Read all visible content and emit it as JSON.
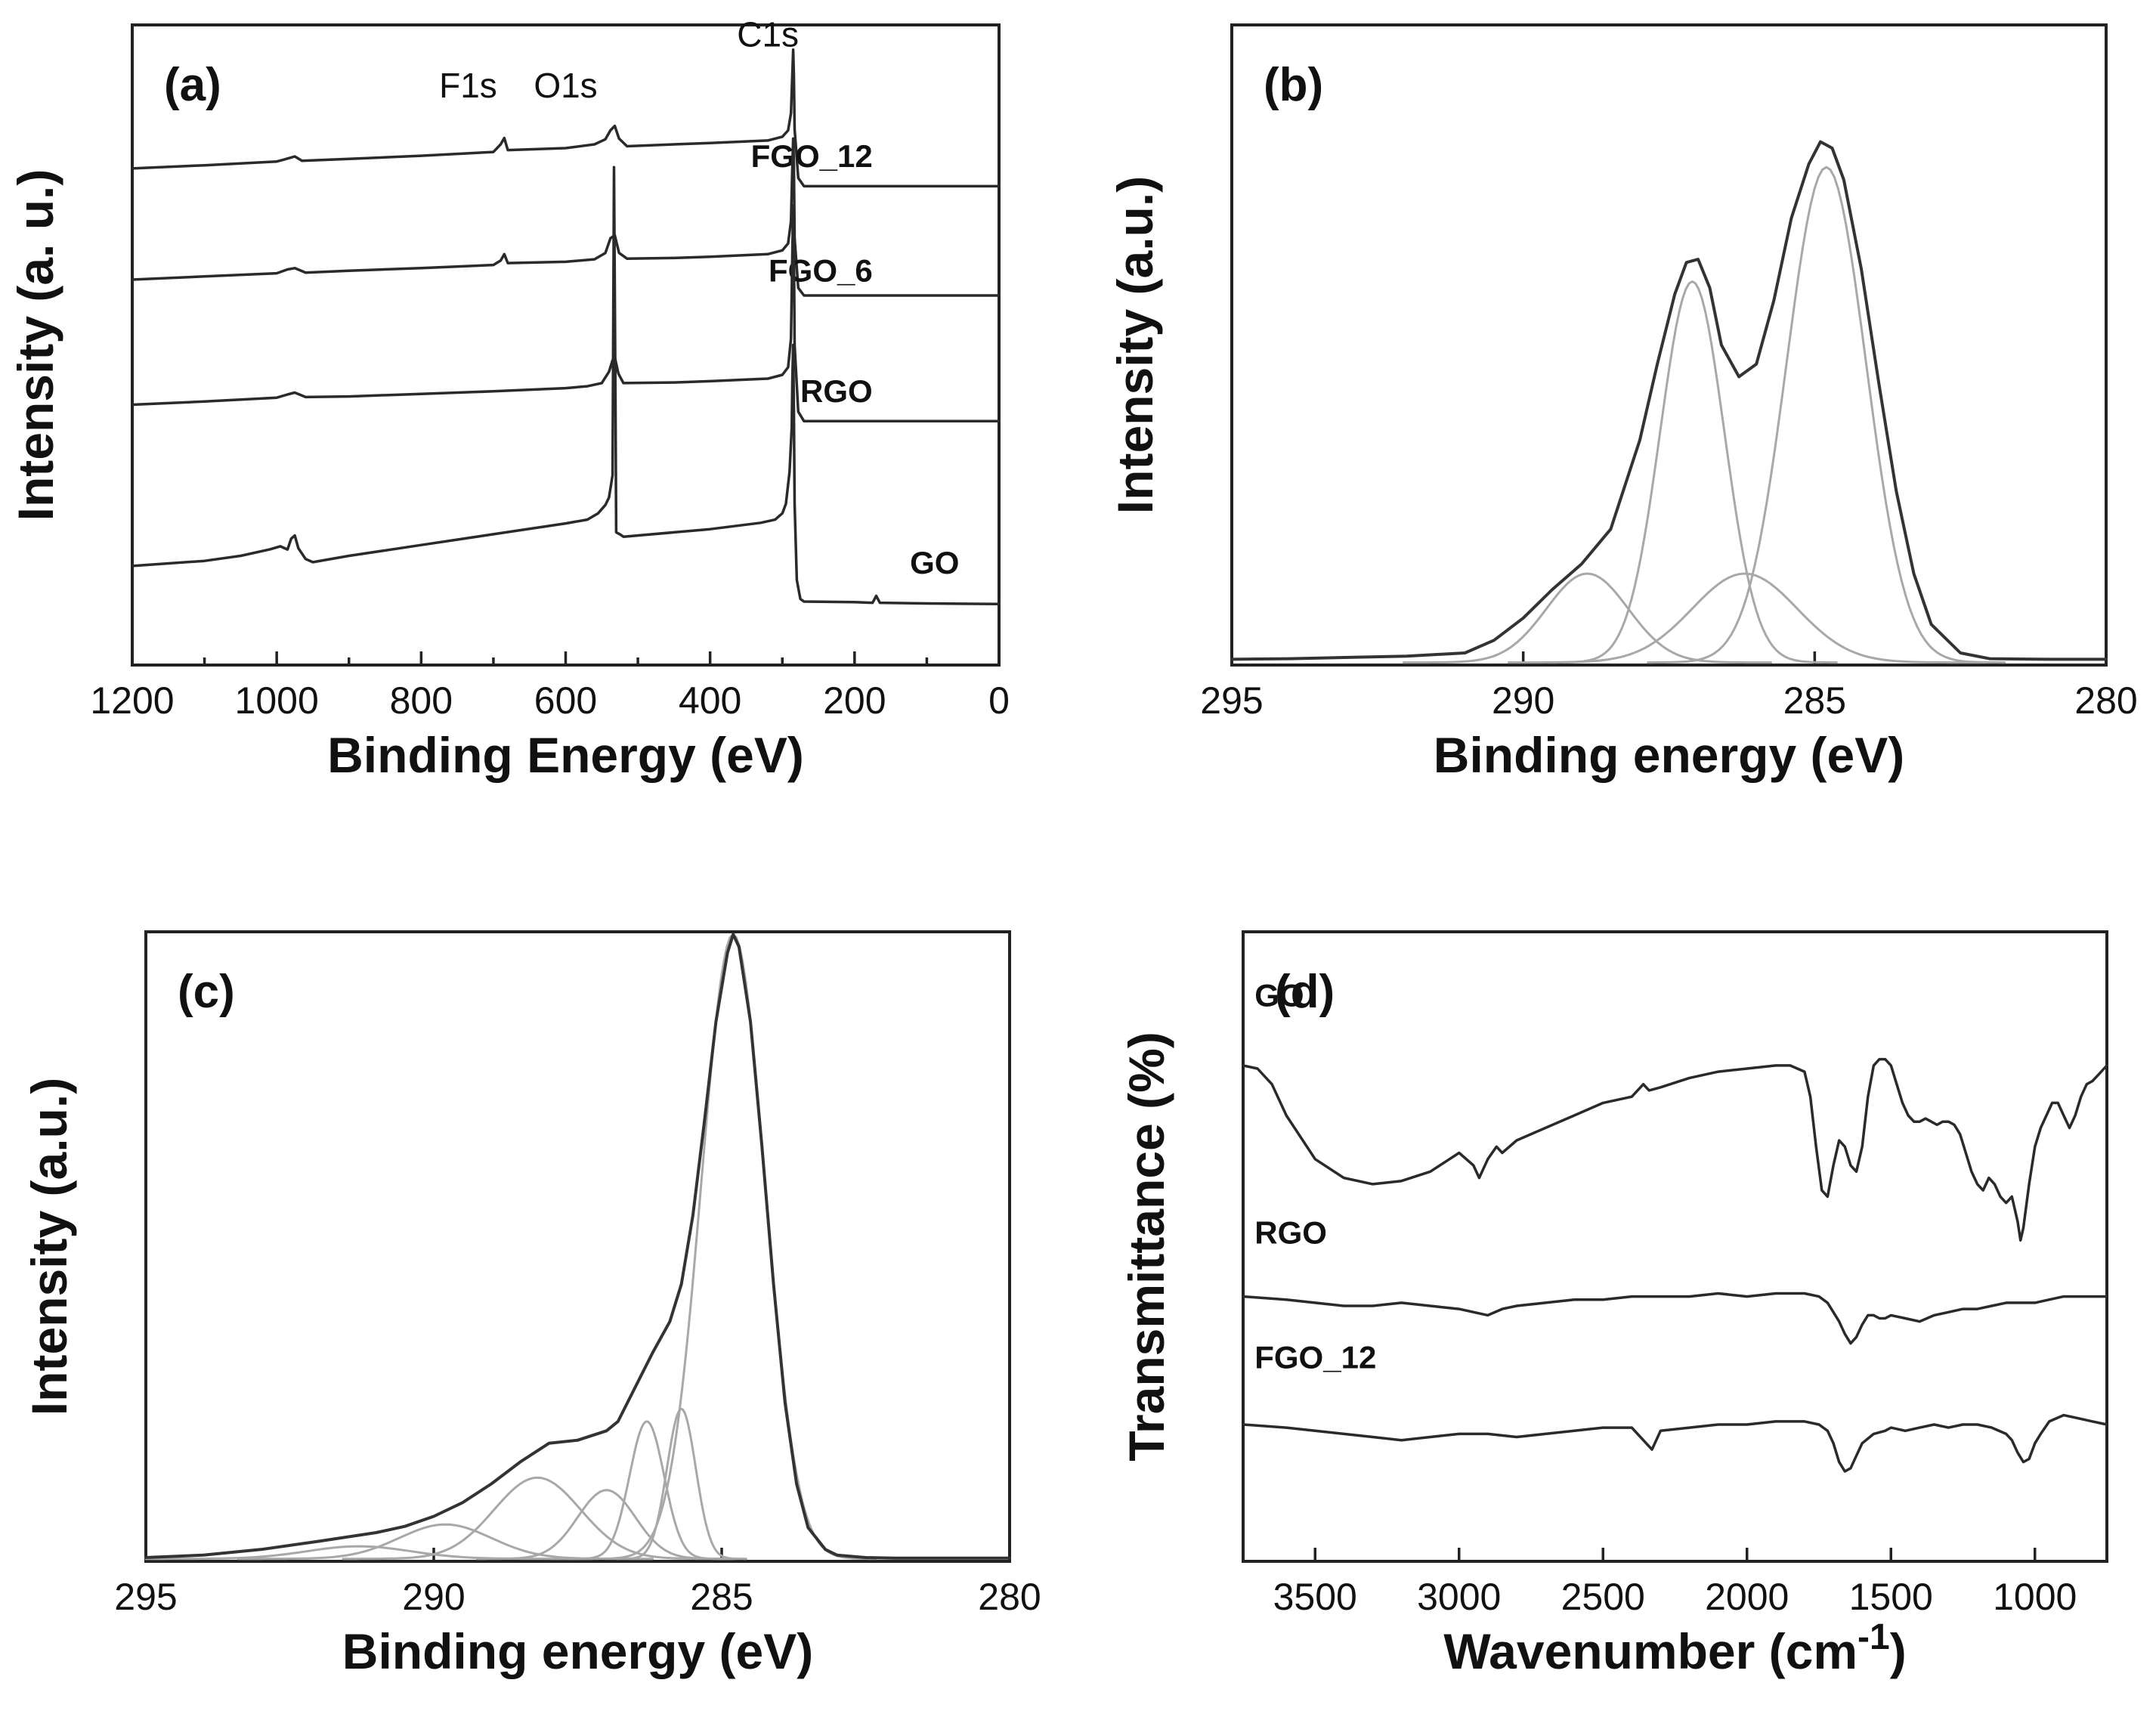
{
  "colors": {
    "frame": "#222222",
    "envelope": "#333333",
    "component": "#a8a8a8",
    "spectrum": "#2a2a2a"
  },
  "chart_data": [
    {
      "id": "a",
      "type": "line",
      "panel_label": "(a)",
      "xlabel": "Binding Energy (eV)",
      "ylabel": "Intensity (a. u.)",
      "xlim": [
        1200,
        0
      ],
      "ylim": [
        0,
        100
      ],
      "xticks": [
        1200,
        1000,
        800,
        600,
        400,
        200,
        0
      ],
      "annotations": [
        {
          "text": "F1s",
          "x": 735,
          "y": 89
        },
        {
          "text": "O1s",
          "x": 600,
          "y": 89
        },
        {
          "text": "C1s",
          "x": 320,
          "y": 97
        }
      ],
      "series": [
        {
          "name": "FGO_12",
          "label_xy": [
            175,
            78
          ],
          "x": [
            1200,
            1100,
            1000,
            990,
            975,
            965,
            900,
            800,
            700,
            690,
            685,
            680,
            600,
            560,
            545,
            538,
            532,
            526,
            515,
            450,
            400,
            320,
            300,
            292,
            288,
            286,
            285,
            284,
            283,
            278,
            270,
            200,
            100,
            0
          ],
          "y": [
            77.8,
            78.3,
            78.9,
            79.2,
            79.7,
            79.0,
            79.3,
            79.8,
            80.4,
            81.6,
            82.6,
            80.7,
            81.0,
            81.6,
            82.4,
            83.8,
            84.5,
            82.5,
            81.3,
            81.6,
            81.8,
            82.2,
            82.8,
            83.8,
            86.5,
            93.0,
            96.5,
            92.5,
            84.0,
            76.3,
            75.0,
            75.0,
            75.0,
            75.0
          ]
        },
        {
          "name": "FGO_6",
          "label_xy": [
            175,
            60
          ],
          "x": [
            1200,
            1100,
            1000,
            985,
            975,
            960,
            900,
            800,
            700,
            690,
            685,
            680,
            600,
            560,
            545,
            538,
            532,
            526,
            515,
            450,
            400,
            320,
            300,
            292,
            288,
            286,
            285,
            284,
            283,
            278,
            270,
            200,
            100,
            0
          ],
          "y": [
            60.3,
            60.8,
            61.3,
            61.9,
            62.1,
            61.4,
            61.7,
            62.1,
            62.6,
            63.3,
            64.3,
            62.9,
            63.1,
            63.5,
            64.5,
            66.8,
            67.3,
            64.5,
            63.6,
            63.7,
            63.9,
            64.3,
            64.9,
            66.0,
            69.5,
            78.5,
            82.5,
            78.5,
            66.8,
            59.0,
            57.8,
            57.8,
            57.8,
            57.8
          ]
        },
        {
          "name": "RGO",
          "label_xy": [
            175,
            41
          ],
          "x": [
            1200,
            1100,
            1000,
            985,
            975,
            960,
            900,
            800,
            700,
            600,
            570,
            550,
            540,
            535,
            532,
            527,
            520,
            450,
            400,
            320,
            300,
            292,
            288,
            286,
            285,
            284,
            283,
            278,
            270,
            200,
            100,
            0
          ],
          "y": [
            40.6,
            41.1,
            41.7,
            42.2,
            42.5,
            41.8,
            41.9,
            42.3,
            42.7,
            43.2,
            43.5,
            44.0,
            45.8,
            47.6,
            48.1,
            45.5,
            44.0,
            44.1,
            44.3,
            44.7,
            45.3,
            46.5,
            51.0,
            65.0,
            72.0,
            66.0,
            50.0,
            39.5,
            38.0,
            38.0,
            38.0,
            38.0
          ]
        },
        {
          "name": "GO",
          "label_xy": [
            55,
            14
          ],
          "x": [
            1200,
            1100,
            1050,
            1010,
            995,
            985,
            980,
            975,
            970,
            960,
            950,
            900,
            800,
            700,
            600,
            570,
            555,
            545,
            540,
            535,
            533,
            531,
            530,
            525,
            520,
            450,
            400,
            330,
            310,
            300,
            295,
            290,
            287,
            286,
            285,
            284,
            283,
            280,
            275,
            270,
            200,
            175,
            170,
            165,
            100,
            0
          ],
          "y": [
            15.2,
            16.0,
            16.8,
            17.8,
            18.3,
            17.8,
            19.5,
            20.0,
            18.0,
            16.3,
            15.8,
            16.8,
            18.5,
            20.2,
            21.9,
            22.5,
            23.5,
            24.8,
            26.0,
            29.5,
            78.0,
            40.0,
            20.5,
            20.2,
            19.8,
            20.5,
            21.0,
            22.0,
            22.5,
            23.5,
            25.0,
            30.0,
            37.0,
            45.0,
            50.0,
            40.0,
            25.0,
            13.0,
            10.0,
            9.6,
            9.5,
            9.4,
            10.5,
            9.4,
            9.3,
            9.2
          ]
        }
      ]
    },
    {
      "id": "b",
      "type": "line",
      "panel_label": "(b)",
      "xlabel": "Binding energy (eV)",
      "ylabel": "Intensity (a.u.)",
      "xlim": [
        295,
        280
      ],
      "ylim": [
        0,
        100
      ],
      "xticks": [
        295,
        290,
        285,
        280
      ],
      "fit_peaks": [
        {
          "center": 284.8,
          "height": 78.0,
          "sigma": 0.68
        },
        {
          "center": 287.1,
          "height": 60.0,
          "sigma": 0.55
        },
        {
          "center": 286.2,
          "height": 14.0,
          "sigma": 0.9
        },
        {
          "center": 288.9,
          "height": 14.0,
          "sigma": 0.7
        }
      ],
      "envelope": {
        "x": [
          295.0,
          294.0,
          293.0,
          292.0,
          291.0,
          290.5,
          290.0,
          289.5,
          289.0,
          288.5,
          288.0,
          287.7,
          287.4,
          287.2,
          287.0,
          286.8,
          286.6,
          286.3,
          286.0,
          285.7,
          285.4,
          285.1,
          284.9,
          284.7,
          284.5,
          284.2,
          283.9,
          283.6,
          283.3,
          283.0,
          282.5,
          282.0,
          281.0,
          280.0
        ],
        "y": [
          0.5,
          0.6,
          0.8,
          1.0,
          1.5,
          3.5,
          7.0,
          11.5,
          15.5,
          21.0,
          35.0,
          47.0,
          58.0,
          63.0,
          63.5,
          59.0,
          50.0,
          45.0,
          47.0,
          57.0,
          70.0,
          78.5,
          82.0,
          81.0,
          76.0,
          62.0,
          44.0,
          27.0,
          14.0,
          6.0,
          1.5,
          0.6,
          0.5,
          0.5
        ]
      }
    },
    {
      "id": "c",
      "type": "line",
      "panel_label": "(c)",
      "xlabel": "Binding energy (eV)",
      "ylabel": "Intensity (a.u.)",
      "xlim": [
        295,
        280
      ],
      "ylim": [
        0,
        100
      ],
      "xticks": [
        295,
        290,
        285,
        280
      ],
      "fit_peaks": [
        {
          "center": 284.8,
          "height": 100.0,
          "sigma": 0.55
        },
        {
          "center": 285.7,
          "height": 24.0,
          "sigma": 0.25
        },
        {
          "center": 286.3,
          "height": 22.0,
          "sigma": 0.3
        },
        {
          "center": 287.0,
          "height": 11.0,
          "sigma": 0.5
        },
        {
          "center": 288.2,
          "height": 13.0,
          "sigma": 0.75
        },
        {
          "center": 289.8,
          "height": 5.5,
          "sigma": 0.8
        },
        {
          "center": 291.3,
          "height": 2.0,
          "sigma": 0.9
        }
      ],
      "envelope": {
        "x": [
          295.0,
          294.0,
          293.0,
          292.0,
          291.0,
          290.5,
          290.0,
          289.5,
          289.0,
          288.5,
          288.0,
          287.5,
          287.0,
          286.8,
          286.5,
          286.2,
          285.9,
          285.7,
          285.5,
          285.3,
          285.1,
          284.9,
          284.8,
          284.7,
          284.5,
          284.3,
          284.1,
          283.9,
          283.7,
          283.5,
          283.2,
          283.0,
          282.5,
          282.0,
          281.0,
          280.0
        ],
        "y": [
          0.2,
          0.6,
          1.5,
          2.8,
          4.2,
          5.2,
          6.8,
          9.0,
          12.0,
          15.5,
          18.5,
          19.0,
          20.5,
          22.0,
          27.5,
          33.0,
          38.0,
          44.0,
          55.0,
          70.0,
          86.0,
          97.0,
          100.0,
          98.0,
          86.0,
          66.0,
          44.0,
          25.0,
          12.0,
          5.0,
          1.5,
          0.6,
          0.2,
          0.1,
          0.1,
          0.1
        ]
      }
    },
    {
      "id": "d",
      "type": "line",
      "panel_label": "(d)",
      "xlabel": "Wavenumber (cm",
      "xlabel_sup": "-1",
      "xlabel_end": ")",
      "ylabel": "Transmittance (%)",
      "xlim": [
        3750,
        750
      ],
      "ylim": [
        0,
        100
      ],
      "xticks": [
        3500,
        3000,
        2500,
        2000,
        1500,
        1000
      ],
      "series": [
        {
          "name": "GO",
          "label_xy": [
            3710,
            88.5
          ],
          "x": [
            3750,
            3700,
            3650,
            3600,
            3500,
            3400,
            3300,
            3200,
            3100,
            3000,
            2950,
            2930,
            2900,
            2870,
            2850,
            2800,
            2700,
            2600,
            2500,
            2400,
            2360,
            2340,
            2300,
            2200,
            2100,
            2000,
            1900,
            1850,
            1800,
            1780,
            1760,
            1740,
            1720,
            1700,
            1680,
            1660,
            1640,
            1620,
            1600,
            1580,
            1560,
            1540,
            1520,
            1500,
            1480,
            1460,
            1440,
            1420,
            1400,
            1380,
            1360,
            1340,
            1320,
            1300,
            1280,
            1260,
            1240,
            1220,
            1200,
            1180,
            1160,
            1140,
            1120,
            1100,
            1080,
            1060,
            1050,
            1040,
            1020,
            1000,
            980,
            960,
            940,
            920,
            900,
            880,
            860,
            840,
            820,
            800,
            780,
            760,
            750
          ],
          "y": [
            79,
            78.5,
            76,
            71,
            64,
            61,
            60,
            60.5,
            62,
            65,
            63,
            61,
            64,
            66,
            65,
            67,
            69,
            71,
            73,
            74,
            76,
            75,
            75.5,
            77,
            78,
            78.5,
            79,
            79,
            78,
            74,
            66,
            59,
            58,
            63,
            67,
            66,
            63,
            62,
            66,
            74,
            79,
            80,
            80,
            79,
            76,
            73,
            71,
            70,
            70,
            70.5,
            70,
            69.5,
            70,
            70,
            69.5,
            68,
            65,
            62,
            60,
            59,
            61,
            60,
            58,
            57,
            58,
            54,
            51,
            53,
            60,
            66,
            69,
            71,
            73,
            73,
            71,
            69,
            71,
            74,
            76,
            76.5,
            77.5,
            78.5,
            79
          ]
        },
        {
          "name": "RGO",
          "label_xy": [
            3710,
            50.5
          ],
          "x": [
            3750,
            3600,
            3500,
            3400,
            3300,
            3200,
            3100,
            3000,
            2900,
            2850,
            2800,
            2700,
            2600,
            2500,
            2400,
            2300,
            2200,
            2100,
            2000,
            1900,
            1800,
            1750,
            1720,
            1700,
            1680,
            1660,
            1640,
            1620,
            1600,
            1580,
            1560,
            1540,
            1520,
            1500,
            1450,
            1400,
            1350,
            1300,
            1250,
            1200,
            1150,
            1100,
            1050,
            1000,
            950,
            900,
            850,
            800,
            750
          ],
          "y": [
            42,
            41.5,
            41,
            40.5,
            40.5,
            41,
            40.5,
            40,
            39,
            40,
            40.5,
            41,
            41.5,
            41.5,
            42,
            42,
            42,
            42.5,
            42,
            42.5,
            42.5,
            42,
            41,
            39.5,
            38,
            36,
            34.5,
            35.5,
            37.5,
            39,
            39,
            38.5,
            38.5,
            39,
            38.5,
            38,
            39,
            39.5,
            40,
            40,
            40.5,
            41,
            41,
            41,
            41.5,
            42,
            42,
            42,
            42
          ]
        },
        {
          "name": "FGO_12",
          "label_xy": [
            3710,
            30.5
          ],
          "x": [
            3750,
            3600,
            3500,
            3400,
            3300,
            3200,
            3100,
            3000,
            2900,
            2800,
            2700,
            2600,
            2500,
            2400,
            2360,
            2330,
            2300,
            2200,
            2100,
            2000,
            1900,
            1800,
            1750,
            1720,
            1700,
            1680,
            1660,
            1640,
            1620,
            1600,
            1560,
            1520,
            1500,
            1450,
            1400,
            1350,
            1300,
            1250,
            1200,
            1150,
            1100,
            1080,
            1060,
            1040,
            1020,
            1000,
            980,
            950,
            900,
            850,
            800,
            750
          ],
          "y": [
            21.5,
            21,
            20.5,
            20,
            19.5,
            19,
            19.5,
            20,
            20,
            19.5,
            20,
            20.5,
            21,
            21,
            19,
            17.5,
            20.5,
            21,
            21.5,
            21.5,
            22,
            22,
            21.5,
            20.5,
            18.5,
            15.5,
            14,
            14.5,
            16.5,
            18.5,
            20,
            20.5,
            21,
            20.5,
            21,
            21.5,
            21,
            21.5,
            21.5,
            21,
            20,
            19,
            17,
            15.5,
            16,
            18.5,
            20,
            22,
            23,
            22.5,
            22,
            21.5
          ]
        }
      ]
    }
  ]
}
